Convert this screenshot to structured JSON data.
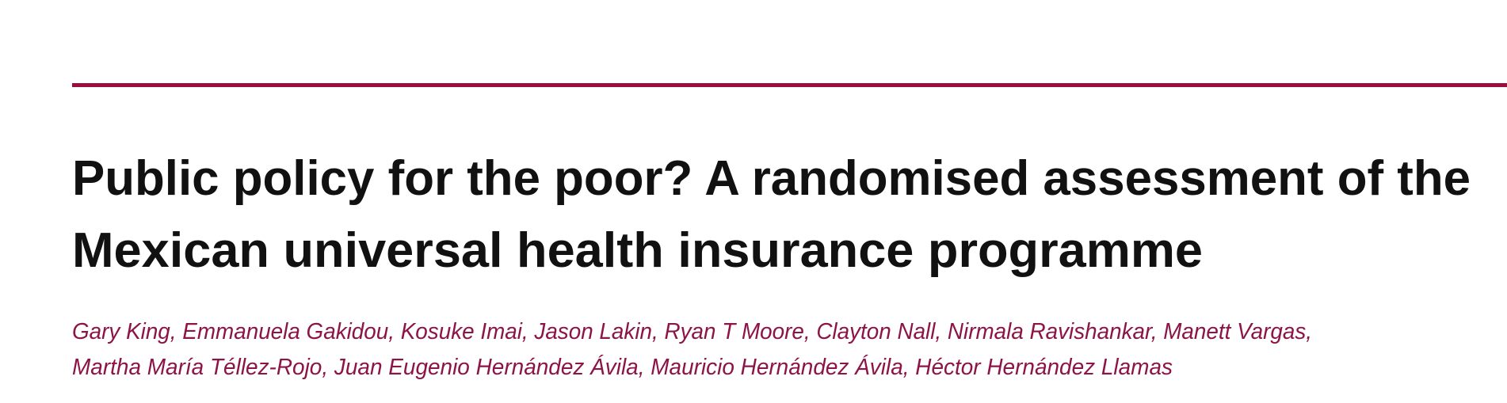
{
  "header": {
    "title_lines": [
      "Public policy for the poor? A randomised assessment of the",
      "Mexican universal health insurance programme"
    ],
    "author_lines": [
      "Gary King, Emmanuela Gakidou, Kosuke Imai, Jason Lakin, Ryan T Moore, Clayton Nall, Nirmala Ravishankar, Manett Vargas,",
      "Martha María Téllez-Rojo, Juan Eugenio Hernández Ávila, Mauricio Hernández Ávila, Héctor Hernández Llamas"
    ]
  }
}
